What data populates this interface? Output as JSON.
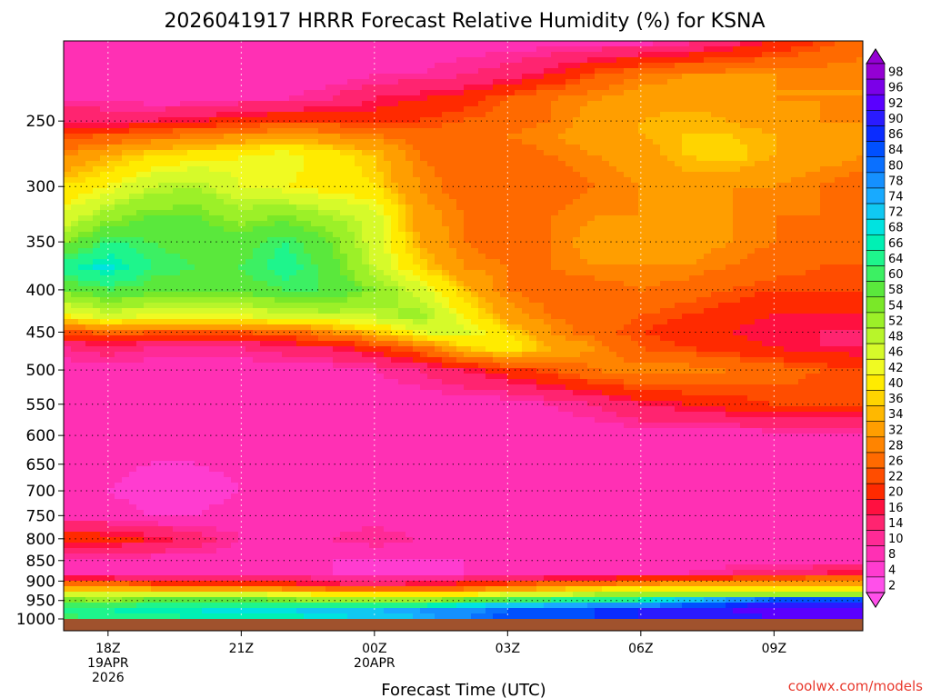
{
  "chart_data": {
    "type": "heatmap",
    "title": "2026041917 HRRR Forecast Relative Humidity (%) for KSNA",
    "xlabel": "Forecast Time (UTC)",
    "ylabel": "",
    "credit": "coolwx.com/models",
    "y_scale": "log-pressure",
    "ylim": [
      1000,
      200
    ],
    "xlim": [
      17,
      35
    ],
    "y_ticks": [
      {
        "value": 250,
        "label": "250"
      },
      {
        "value": 300,
        "label": "300"
      },
      {
        "value": 350,
        "label": "350"
      },
      {
        "value": 400,
        "label": "400"
      },
      {
        "value": 450,
        "label": "450"
      },
      {
        "value": 500,
        "label": "500"
      },
      {
        "value": 550,
        "label": "550"
      },
      {
        "value": 600,
        "label": "600"
      },
      {
        "value": 650,
        "label": "650"
      },
      {
        "value": 700,
        "label": "700"
      },
      {
        "value": 750,
        "label": "750"
      },
      {
        "value": 800,
        "label": "800"
      },
      {
        "value": 850,
        "label": "850"
      },
      {
        "value": 900,
        "label": "900"
      },
      {
        "value": 950,
        "label": "950"
      },
      {
        "value": 1000,
        "label": "1000"
      }
    ],
    "x_ticks": [
      {
        "value": 18,
        "lines": [
          "18Z",
          "19APR",
          "2026"
        ]
      },
      {
        "value": 21,
        "lines": [
          "21Z"
        ]
      },
      {
        "value": 24,
        "lines": [
          "00Z",
          "20APR"
        ]
      },
      {
        "value": 27,
        "lines": [
          "03Z"
        ]
      },
      {
        "value": 30,
        "lines": [
          "06Z"
        ]
      },
      {
        "value": 33,
        "lines": [
          "09Z"
        ]
      }
    ],
    "grid": true,
    "colorbar": {
      "levels": [
        98,
        96,
        92,
        90,
        86,
        84,
        80,
        78,
        74,
        72,
        68,
        66,
        64,
        60,
        58,
        54,
        52,
        48,
        46,
        42,
        40,
        36,
        34,
        32,
        28,
        26,
        22,
        20,
        16,
        14,
        10,
        8,
        4,
        2
      ],
      "colors": [
        "#9400d3",
        "#7b00e8",
        "#5a00ff",
        "#2a1bff",
        "#0a2cff",
        "#0050ff",
        "#0a70ff",
        "#1590ff",
        "#18aaff",
        "#10c8f2",
        "#00e3e0",
        "#00f0b4",
        "#1ef58c",
        "#3cf063",
        "#5ae83c",
        "#7ae828",
        "#9cf028",
        "#b8f52a",
        "#d6fa2a",
        "#f0fa22",
        "#ffeb00",
        "#ffd400",
        "#ffb800",
        "#ff9e00",
        "#ff8400",
        "#ff6a00",
        "#ff4d00",
        "#ff2a00",
        "#ff1040",
        "#ff2470",
        "#ff2a96",
        "#ff30b4",
        "#ff3cd0",
        "#ff50ea"
      ],
      "extend": "both"
    },
    "rh_x": [
      17,
      18,
      19,
      20,
      21,
      22,
      23,
      24,
      25,
      26,
      27,
      28,
      29,
      30,
      31,
      32,
      33,
      34,
      35
    ],
    "rh_profiles": [
      {
        "p": 1000,
        "rh": [
          58,
          60,
          62,
          64,
          64,
          64,
          66,
          68,
          72,
          78,
          82,
          84,
          84,
          86,
          88,
          88,
          90,
          90,
          90
        ]
      },
      {
        "p": 975,
        "rh": [
          62,
          64,
          66,
          66,
          68,
          68,
          70,
          72,
          74,
          76,
          80,
          82,
          84,
          86,
          88,
          90,
          92,
          92,
          92
        ]
      },
      {
        "p": 950,
        "rh": [
          54,
          52,
          56,
          56,
          58,
          54,
          52,
          50,
          52,
          56,
          60,
          62,
          64,
          66,
          72,
          78,
          84,
          86,
          88
        ]
      },
      {
        "p": 930,
        "rh": [
          40,
          40,
          42,
          42,
          40,
          38,
          36,
          34,
          32,
          34,
          38,
          40,
          44,
          44,
          44,
          42,
          40,
          40,
          40
        ]
      },
      {
        "p": 910,
        "rh": [
          24,
          26,
          22,
          22,
          20,
          18,
          16,
          14,
          16,
          18,
          22,
          26,
          28,
          30,
          32,
          34,
          34,
          34,
          32
        ]
      },
      {
        "p": 880,
        "rh": [
          8,
          6,
          6,
          6,
          6,
          6,
          4,
          4,
          4,
          4,
          6,
          6,
          6,
          8,
          8,
          10,
          12,
          14,
          16
        ]
      },
      {
        "p": 850,
        "rh": [
          6,
          6,
          6,
          6,
          6,
          4,
          4,
          4,
          4,
          4,
          4,
          6,
          6,
          6,
          6,
          6,
          6,
          6,
          6
        ]
      },
      {
        "p": 800,
        "rh": [
          20,
          18,
          16,
          12,
          8,
          6,
          8,
          10,
          8,
          6,
          6,
          6,
          6,
          6,
          6,
          6,
          6,
          6,
          6
        ]
      },
      {
        "p": 750,
        "rh": [
          6,
          6,
          4,
          4,
          6,
          6,
          6,
          6,
          6,
          6,
          6,
          6,
          6,
          6,
          6,
          6,
          6,
          6,
          6
        ]
      },
      {
        "p": 700,
        "rh": [
          4,
          4,
          2,
          2,
          4,
          4,
          6,
          6,
          6,
          6,
          6,
          6,
          6,
          6,
          6,
          6,
          6,
          6,
          6
        ]
      },
      {
        "p": 600,
        "rh": [
          6,
          6,
          6,
          6,
          6,
          6,
          6,
          6,
          6,
          6,
          6,
          6,
          6,
          6,
          6,
          6,
          6,
          6,
          6
        ]
      },
      {
        "p": 550,
        "rh": [
          6,
          6,
          6,
          6,
          6,
          6,
          6,
          6,
          6,
          6,
          6,
          8,
          10,
          14,
          16,
          18,
          20,
          20,
          20
        ]
      },
      {
        "p": 500,
        "rh": [
          6,
          6,
          6,
          6,
          6,
          6,
          6,
          8,
          10,
          14,
          18,
          22,
          26,
          28,
          28,
          26,
          24,
          22,
          20
        ]
      },
      {
        "p": 470,
        "rh": [
          10,
          12,
          10,
          10,
          10,
          12,
          14,
          18,
          24,
          34,
          40,
          32,
          28,
          22,
          20,
          18,
          16,
          14,
          14
        ]
      },
      {
        "p": 450,
        "rh": [
          20,
          24,
          22,
          22,
          22,
          24,
          28,
          34,
          42,
          44,
          36,
          28,
          24,
          20,
          18,
          16,
          14,
          14,
          14
        ]
      },
      {
        "p": 430,
        "rh": [
          40,
          44,
          42,
          42,
          42,
          44,
          46,
          46,
          50,
          40,
          30,
          26,
          24,
          22,
          20,
          18,
          16,
          16,
          16
        ]
      },
      {
        "p": 400,
        "rh": [
          54,
          58,
          56,
          56,
          56,
          58,
          58,
          52,
          44,
          34,
          26,
          24,
          24,
          26,
          24,
          22,
          20,
          20,
          20
        ]
      },
      {
        "p": 375,
        "rh": [
          62,
          68,
          60,
          58,
          58,
          62,
          56,
          46,
          36,
          28,
          26,
          26,
          28,
          28,
          28,
          26,
          24,
          22,
          22
        ]
      },
      {
        "p": 350,
        "rh": [
          52,
          60,
          58,
          56,
          56,
          60,
          54,
          44,
          32,
          26,
          24,
          26,
          30,
          30,
          30,
          28,
          26,
          26,
          24
        ]
      },
      {
        "p": 325,
        "rh": [
          42,
          50,
          54,
          54,
          50,
          52,
          48,
          44,
          30,
          26,
          24,
          26,
          28,
          28,
          28,
          28,
          26,
          26,
          26
        ]
      },
      {
        "p": 300,
        "rh": [
          36,
          40,
          46,
          48,
          42,
          40,
          38,
          36,
          28,
          24,
          22,
          24,
          26,
          28,
          30,
          28,
          28,
          26,
          24
        ]
      },
      {
        "p": 275,
        "rh": [
          28,
          32,
          36,
          38,
          40,
          42,
          38,
          34,
          26,
          24,
          24,
          26,
          28,
          30,
          34,
          36,
          32,
          30,
          28
        ]
      },
      {
        "p": 260,
        "rh": [
          20,
          22,
          24,
          26,
          28,
          30,
          28,
          26,
          24,
          24,
          26,
          28,
          30,
          32,
          34,
          34,
          32,
          30,
          28
        ]
      },
      {
        "p": 250,
        "rh": [
          14,
          12,
          14,
          16,
          18,
          20,
          20,
          18,
          20,
          22,
          24,
          26,
          30,
          32,
          34,
          32,
          30,
          28,
          28
        ]
      },
      {
        "p": 235,
        "rh": [
          8,
          8,
          6,
          6,
          8,
          8,
          10,
          14,
          16,
          18,
          22,
          26,
          28,
          30,
          30,
          30,
          28,
          28,
          28
        ]
      },
      {
        "p": 220,
        "rh": [
          6,
          6,
          6,
          6,
          6,
          6,
          6,
          8,
          8,
          10,
          12,
          16,
          22,
          26,
          28,
          28,
          28,
          28,
          28
        ]
      },
      {
        "p": 200,
        "rh": [
          6,
          6,
          6,
          6,
          6,
          6,
          6,
          6,
          6,
          6,
          6,
          6,
          6,
          6,
          8,
          12,
          16,
          20,
          24
        ]
      }
    ]
  }
}
